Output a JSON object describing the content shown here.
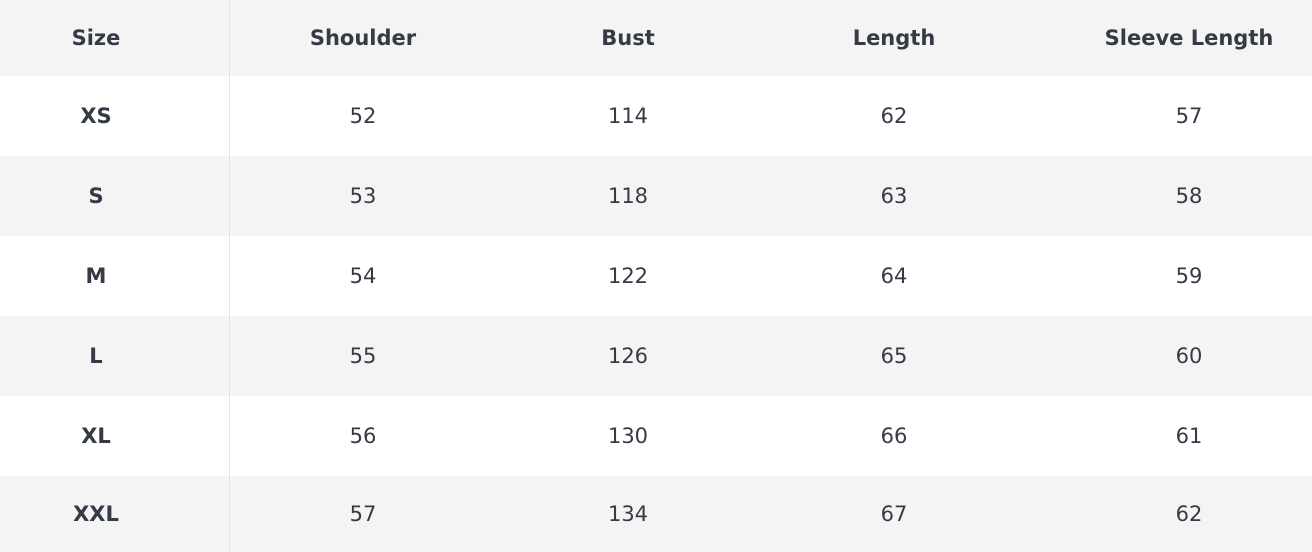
{
  "table": {
    "header": [
      "Size",
      "Shoulder",
      "Bust",
      "Length",
      "Sleeve Length"
    ],
    "rows": [
      [
        "XS",
        52,
        114,
        62,
        57
      ],
      [
        "S",
        53,
        118,
        63,
        58
      ],
      [
        "M",
        54,
        122,
        64,
        59
      ],
      [
        "L",
        55,
        126,
        65,
        60
      ],
      [
        "XL",
        56,
        130,
        66,
        61
      ],
      [
        "XXL",
        57,
        134,
        67,
        62
      ]
    ]
  }
}
